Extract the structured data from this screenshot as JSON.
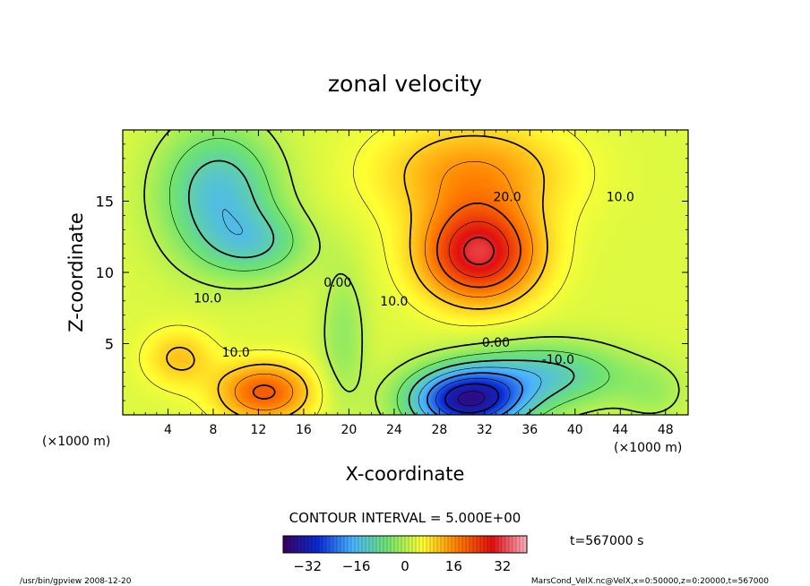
{
  "chart_data": {
    "type": "heatmap",
    "title": "zonal velocity",
    "xlabel": "X-coordinate",
    "ylabel": "Z-coordinate",
    "x_unit": "(×1000 m)",
    "y_unit": "(×1000 m)",
    "xlim": [
      0,
      50
    ],
    "ylim": [
      0,
      20
    ],
    "x_ticks": [
      4,
      8,
      12,
      16,
      20,
      24,
      28,
      32,
      36,
      40,
      44,
      48
    ],
    "y_ticks": [
      5,
      10,
      15
    ],
    "contour_interval_text": "CONTOUR INTERVAL = 5.000E+00",
    "time_label": "t=567000 s",
    "colorbar": {
      "min": -40,
      "max": 40,
      "ticks": [
        -32,
        -16,
        0,
        16,
        32
      ],
      "colors": [
        "#3a0060",
        "#0a2bd6",
        "#4ab4ff",
        "#6fe46f",
        "#ffff33",
        "#ff7f00",
        "#e01010",
        "#ffb0c0"
      ]
    },
    "contour_labels": [
      {
        "text": "20.0",
        "x": 34.0,
        "z": 15.3
      },
      {
        "text": "10.0",
        "x": 44.0,
        "z": 15.3
      },
      {
        "text": "10.0",
        "x": 7.5,
        "z": 8.2
      },
      {
        "text": "0.00",
        "x": 19.0,
        "z": 9.3
      },
      {
        "text": "10.0",
        "x": 24.0,
        "z": 8.0
      },
      {
        "text": "0.00",
        "x": 33.0,
        "z": 5.1
      },
      {
        "text": "-10.0",
        "x": 38.5,
        "z": 3.9
      },
      {
        "text": "10.0",
        "x": 10.0,
        "z": 4.4
      }
    ],
    "field_features": [
      {
        "x": 31.5,
        "z": 11.3,
        "value": 30
      },
      {
        "x": 30.5,
        "z": 1.2,
        "value": -33
      },
      {
        "x": 8.5,
        "z": 15.5,
        "value": -13
      },
      {
        "x": 12.5,
        "z": 1.5,
        "value": 20
      },
      {
        "x": 48.0,
        "z": 17.0,
        "value": 3
      }
    ]
  },
  "footer": {
    "left": "/usr/bin/gpview 2008-12-20",
    "right": "MarsCond_VelX.nc@VelX,x=0:50000,z=0:20000,t=567000"
  }
}
